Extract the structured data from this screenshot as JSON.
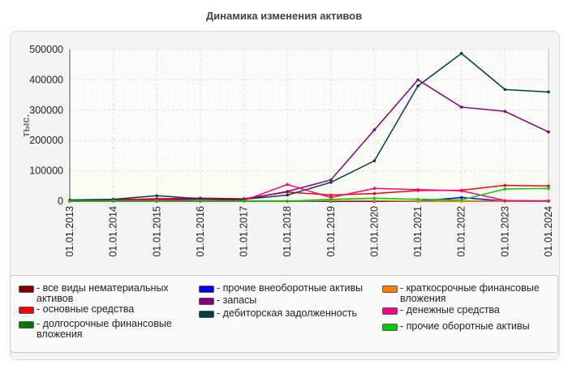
{
  "chart_data": {
    "type": "line",
    "title": "Динамика изменения активов",
    "ylabel": "тыс.",
    "xlabel": "",
    "ylim": [
      0,
      500000
    ],
    "yticks": [
      "0",
      "100000",
      "200000",
      "300000",
      "400000",
      "500000"
    ],
    "ytick_values": [
      0,
      100000,
      200000,
      300000,
      400000,
      500000
    ],
    "categories": [
      "01.01.2013",
      "01.01.2014",
      "01.01.2015",
      "01.01.2016",
      "01.01.2017",
      "01.01.2018",
      "01.01.2019",
      "01.01.2020",
      "01.01.2021",
      "01.01.2022",
      "01.01.2023",
      "01.01.2024"
    ],
    "legend_position": "bottom",
    "series": [
      {
        "name": "- все виды нематериальных активов",
        "color": "#800000",
        "values": [
          0,
          0,
          0,
          0,
          0,
          0,
          0,
          0,
          0,
          0,
          0,
          0
        ]
      },
      {
        "name": "- основные средства",
        "color": "#ff0000",
        "values": [
          3000,
          5000,
          8000,
          10000,
          8000,
          30000,
          20000,
          25000,
          35000,
          36000,
          52000,
          50000
        ]
      },
      {
        "name": "- долгосрочные финансовые вложения",
        "color": "#007700",
        "values": [
          0,
          0,
          0,
          0,
          0,
          0,
          0,
          0,
          0,
          0,
          0,
          0
        ]
      },
      {
        "name": "- прочие внеоборотные активы",
        "color": "#0000ff",
        "values": [
          0,
          0,
          0,
          0,
          0,
          0,
          0,
          0,
          0,
          12000,
          0,
          0
        ]
      },
      {
        "name": "- запасы",
        "color": "#800080",
        "values": [
          2000,
          3000,
          5000,
          7000,
          5000,
          32000,
          70000,
          235000,
          400000,
          310000,
          296000,
          228000
        ]
      },
      {
        "name": "- дебиторская задолженность",
        "color": "#004040",
        "values": [
          4000,
          6000,
          18000,
          8000,
          6000,
          20000,
          62000,
          133000,
          380000,
          487000,
          368000,
          360000
        ]
      },
      {
        "name": "- краткосрочные финансовые вложения",
        "color": "#ff8000",
        "values": [
          0,
          0,
          0,
          0,
          0,
          0,
          2000,
          2000,
          0,
          0,
          0,
          0
        ]
      },
      {
        "name": "- денежные средства",
        "color": "#ff007f",
        "values": [
          1000,
          2000,
          3000,
          2000,
          2000,
          55000,
          12000,
          42000,
          38000,
          34000,
          2000,
          1000
        ]
      },
      {
        "name": "- прочие оборотные активы",
        "color": "#00cc00",
        "values": [
          0,
          0,
          0,
          0,
          0,
          0,
          6000,
          10000,
          6000,
          4000,
          40000,
          42000
        ]
      }
    ]
  }
}
